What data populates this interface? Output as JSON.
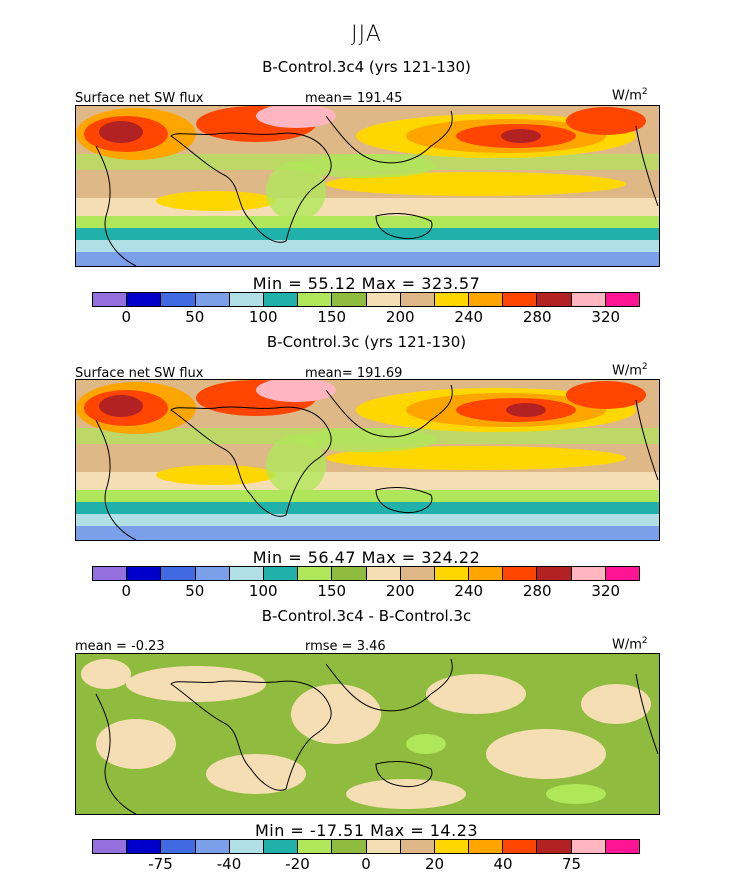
{
  "season": "JJA",
  "unit_label": "W/m",
  "unit_exp": "2",
  "panels": [
    {
      "title": "B-Control.3c4 (yrs 121-130)",
      "left_label": "Surface net SW flux",
      "stat_label": "mean= 191.45",
      "minmax": "Min = 55.12 Max = 323.57"
    },
    {
      "title": "B-Control.3c (yrs 121-130)",
      "left_label": "Surface net SW flux",
      "stat_label": "mean= 191.69",
      "minmax": "Min = 56.47 Max = 324.22"
    },
    {
      "title": "B-Control.3c4 - B-Control.3c",
      "left_label": "mean = -0.23",
      "stat_label": "rmse = 3.46",
      "minmax": "Min = -17.51 Max = 14.23"
    }
  ],
  "colorbar_colors": [
    "#9370db",
    "#0000cd",
    "#4169e1",
    "#7b9fe8",
    "#b0e0e6",
    "#20b2aa",
    "#b0e65a",
    "#8fbc3f",
    "#f5deb3",
    "#deb887",
    "#ffd700",
    "#ffa500",
    "#ff4500",
    "#b22222",
    "#ffb6c1",
    "#ff1493"
  ],
  "abs_ticks": [
    "0",
    "50",
    "100",
    "150",
    "200",
    "240",
    "280",
    "320"
  ],
  "diff_ticks": [
    "-75",
    "-40",
    "-20",
    "0",
    "20",
    "40",
    "75"
  ]
}
